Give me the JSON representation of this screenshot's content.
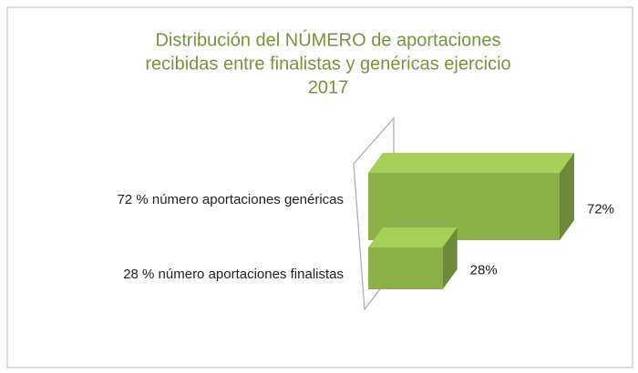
{
  "chart_data": {
    "type": "bar3d_horizontal",
    "title": [
      "Distribución del NÚMERO de aportaciones",
      "recibidas entre finalistas y genéricas ejercicio",
      "2017"
    ],
    "categories": [
      "72 % número aportaciones genéricas",
      "28 % número aportaciones finalistas"
    ],
    "values": [
      72,
      28
    ],
    "value_labels": [
      "72%",
      "28%"
    ],
    "color": "#8db04a"
  }
}
